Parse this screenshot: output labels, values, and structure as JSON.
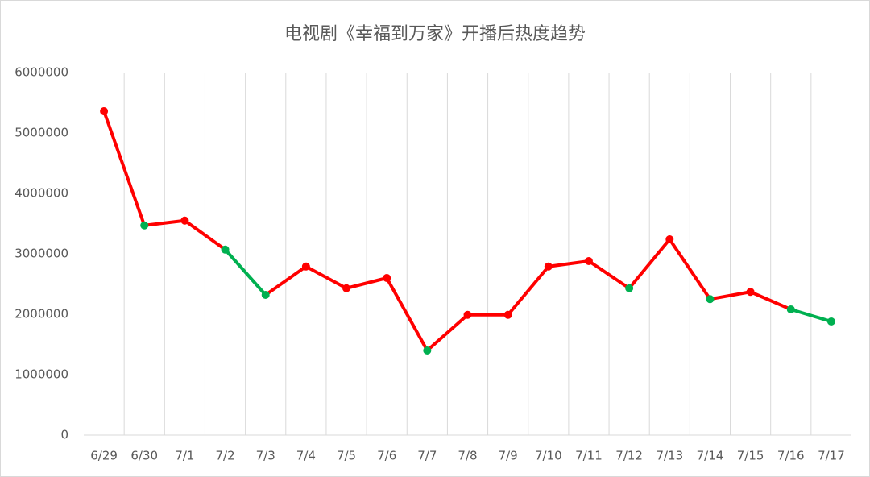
{
  "chart_data": {
    "type": "line",
    "title": "电视剧《幸福到万家》开播后热度趋势",
    "categories": [
      "6/29",
      "6/30",
      "7/1",
      "7/2",
      "7/3",
      "7/4",
      "7/5",
      "7/6",
      "7/7",
      "7/8",
      "7/9",
      "7/10",
      "7/11",
      "7/12",
      "7/13",
      "7/14",
      "7/15",
      "7/16",
      "7/17"
    ],
    "values": [
      5360000,
      3470000,
      3550000,
      3070000,
      2320000,
      2790000,
      2430000,
      2600000,
      1400000,
      1990000,
      1990000,
      2790000,
      2880000,
      2430000,
      3240000,
      2250000,
      2370000,
      2080000,
      1880000
    ],
    "point_colors": [
      "#ff0000",
      "#00b050",
      "#ff0000",
      "#00b050",
      "#00b050",
      "#ff0000",
      "#ff0000",
      "#ff0000",
      "#00b050",
      "#ff0000",
      "#ff0000",
      "#ff0000",
      "#ff0000",
      "#00b050",
      "#ff0000",
      "#00b050",
      "#ff0000",
      "#00b050",
      "#00b050"
    ],
    "segment_colors": [
      "#ff0000",
      "#ff0000",
      "#ff0000",
      "#00b050",
      "#ff0000",
      "#ff0000",
      "#ff0000",
      "#ff0000",
      "#ff0000",
      "#ff0000",
      "#ff0000",
      "#ff0000",
      "#ff0000",
      "#ff0000",
      "#ff0000",
      "#ff0000",
      "#ff0000",
      "#00b050"
    ],
    "ylim": [
      0,
      6000000
    ],
    "yticks": [
      0,
      1000000,
      2000000,
      3000000,
      4000000,
      5000000,
      6000000
    ],
    "grid": "x"
  }
}
